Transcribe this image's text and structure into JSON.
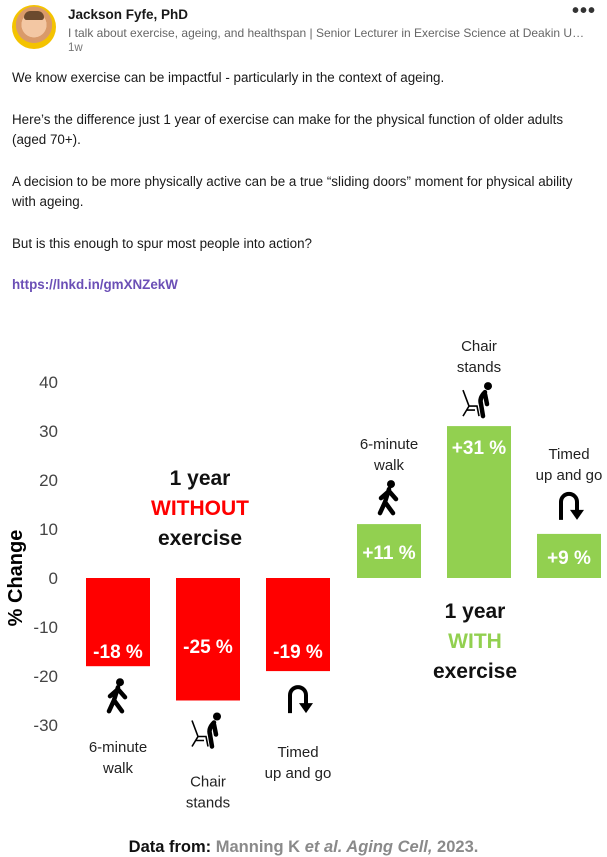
{
  "post": {
    "author": "Jackson Fyfe, PhD",
    "headline": "I talk about exercise, ageing, and healthspan | Senior Lecturer in Exercise Science at Deakin University",
    "time": "1w",
    "more_label": "•••",
    "paragraphs": [
      "We know exercise can be impactful - particularly in the context of ageing.",
      "Here’s the difference just 1 year of exercise can make for the physical function of older adults (aged 70+).",
      "A decision to be more physically active can be a true “sliding doors” moment for physical ability with ageing.",
      "But is this enough to spur most people into action?"
    ],
    "link": "https://lnkd.in/gmXNZekW"
  },
  "colors": {
    "negative": "#ff0000",
    "positive": "#92d050",
    "link": "#6b4fb6"
  },
  "chart_data": {
    "type": "bar",
    "ylabel": "% Change",
    "ylim": [
      -35,
      45
    ],
    "yticks": [
      40,
      30,
      20,
      10,
      0,
      -10,
      -20,
      -30
    ],
    "groups": [
      {
        "title_lines": [
          "1 year",
          "WITHOUT",
          "exercise"
        ],
        "bars": [
          {
            "value": -18,
            "label": "-18 %",
            "category": [
              "6-minute",
              "walk"
            ],
            "icon": "walking-icon"
          },
          {
            "value": -25,
            "label": "-25 %",
            "category": [
              "Chair",
              "stands"
            ],
            "icon": "chair-stand-icon"
          },
          {
            "value": -19,
            "label": "-19 %",
            "category": [
              "Timed",
              "up and go"
            ],
            "icon": "u-turn-icon"
          }
        ]
      },
      {
        "title_lines": [
          "1 year",
          "WITH",
          "exercise"
        ],
        "bars": [
          {
            "value": 11,
            "label": "+11 %",
            "category": [
              "6-minute",
              "walk"
            ],
            "icon": "walking-icon"
          },
          {
            "value": 31,
            "label": "+31 %",
            "category": [
              "Chair",
              "stands"
            ],
            "icon": "chair-stand-icon"
          },
          {
            "value": 9,
            "label": "+9 %",
            "category": [
              "Timed",
              "up and go"
            ],
            "icon": "u-turn-icon"
          }
        ]
      }
    ]
  },
  "citation": {
    "lead": "Data from:",
    "authors": "Manning K",
    "etal": "et al",
    "journal": ". Aging Cell,",
    "year": "2023."
  }
}
